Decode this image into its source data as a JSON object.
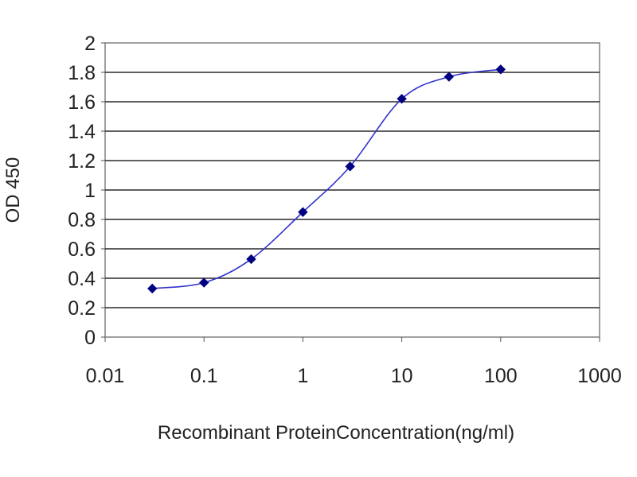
{
  "chart_data": {
    "type": "line",
    "title": "",
    "xlabel": "Recombinant ProteinConcentration(ng/ml)",
    "ylabel": "OD 450",
    "x_scale": "log",
    "xlim": [
      0.01,
      1000
    ],
    "ylim": [
      0,
      2
    ],
    "x_tick_labels": [
      "0.01",
      "0.1",
      "1",
      "10",
      "100",
      "1000"
    ],
    "y_tick_labels": [
      "0",
      "0.2",
      "0.4",
      "0.6",
      "0.8",
      "1",
      "1.2",
      "1.4",
      "1.6",
      "1.8",
      "2"
    ],
    "grid": "horizontal",
    "legend": "none",
    "series": [
      {
        "x": [
          0.03,
          0.1,
          0.3,
          1,
          3,
          10,
          30,
          100
        ],
        "y": [
          0.33,
          0.37,
          0.53,
          0.85,
          1.16,
          1.62,
          1.77,
          1.82
        ],
        "color": "#3333cc",
        "marker_color": "#000080"
      }
    ]
  }
}
